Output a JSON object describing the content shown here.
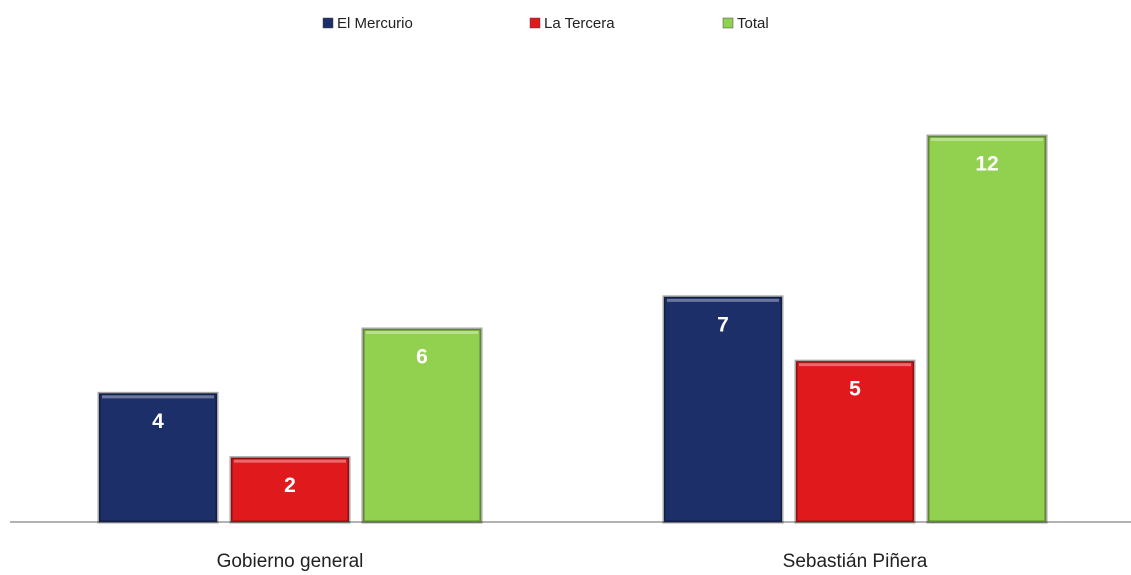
{
  "chart_data": {
    "type": "bar",
    "categories": [
      "Gobierno general",
      "Sebastián Piñera"
    ],
    "series": [
      {
        "name": "El Mercurio",
        "color": "#1c2f68",
        "values": [
          4,
          7
        ]
      },
      {
        "name": "La Tercera",
        "color": "#e0191c",
        "values": [
          2,
          5
        ]
      },
      {
        "name": "Total",
        "color": "#92d050",
        "values": [
          6,
          12
        ]
      }
    ],
    "ylim": [
      0,
      12
    ],
    "legend": "top"
  }
}
